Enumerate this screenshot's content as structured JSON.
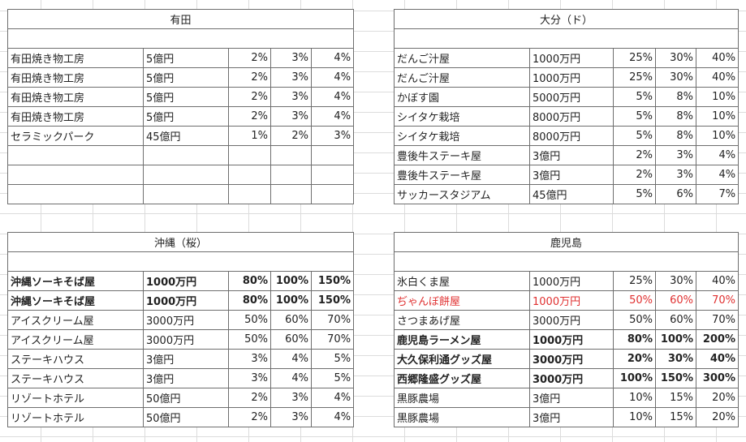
{
  "sheets": [
    {
      "title": "有田",
      "rows": [
        {
          "name": "有田焼き物工房",
          "cost": "5億円",
          "p1": "2%",
          "p2": "3%",
          "p3": "4%",
          "style": ""
        },
        {
          "name": "有田焼き物工房",
          "cost": "5億円",
          "p1": "2%",
          "p2": "3%",
          "p3": "4%",
          "style": ""
        },
        {
          "name": "有田焼き物工房",
          "cost": "5億円",
          "p1": "2%",
          "p2": "3%",
          "p3": "4%",
          "style": ""
        },
        {
          "name": "有田焼き物工房",
          "cost": "5億円",
          "p1": "2%",
          "p2": "3%",
          "p3": "4%",
          "style": ""
        },
        {
          "name": "セラミックパーク",
          "cost": "45億円",
          "p1": "1%",
          "p2": "2%",
          "p3": "3%",
          "style": ""
        },
        {
          "name": "",
          "cost": "",
          "p1": "",
          "p2": "",
          "p3": "",
          "style": ""
        },
        {
          "name": "",
          "cost": "",
          "p1": "",
          "p2": "",
          "p3": "",
          "style": ""
        },
        {
          "name": "",
          "cost": "",
          "p1": "",
          "p2": "",
          "p3": "",
          "style": ""
        }
      ]
    },
    {
      "title": "大分（ド）",
      "rows": [
        {
          "name": "だんご汁屋",
          "cost": "1000万円",
          "p1": "25%",
          "p2": "30%",
          "p3": "40%",
          "style": ""
        },
        {
          "name": "だんご汁屋",
          "cost": "1000万円",
          "p1": "25%",
          "p2": "30%",
          "p3": "40%",
          "style": ""
        },
        {
          "name": "かぼす園",
          "cost": "5000万円",
          "p1": "5%",
          "p2": "8%",
          "p3": "10%",
          "style": ""
        },
        {
          "name": "シイタケ栽培",
          "cost": "8000万円",
          "p1": "5%",
          "p2": "8%",
          "p3": "10%",
          "style": ""
        },
        {
          "name": "シイタケ栽培",
          "cost": "8000万円",
          "p1": "5%",
          "p2": "8%",
          "p3": "10%",
          "style": ""
        },
        {
          "name": "豊後牛ステーキ屋",
          "cost": "3億円",
          "p1": "2%",
          "p2": "3%",
          "p3": "4%",
          "style": ""
        },
        {
          "name": "豊後牛ステーキ屋",
          "cost": "3億円",
          "p1": "2%",
          "p2": "3%",
          "p3": "4%",
          "style": ""
        },
        {
          "name": "サッカースタジアム",
          "cost": "45億円",
          "p1": "5%",
          "p2": "6%",
          "p3": "7%",
          "style": ""
        }
      ]
    },
    {
      "title": "沖縄（桜）",
      "rows": [
        {
          "name": "沖縄ソーキそば屋",
          "cost": "1000万円",
          "p1": "80%",
          "p2": "100%",
          "p3": "150%",
          "style": "bold"
        },
        {
          "name": "沖縄ソーキそば屋",
          "cost": "1000万円",
          "p1": "80%",
          "p2": "100%",
          "p3": "150%",
          "style": "bold"
        },
        {
          "name": "アイスクリーム屋",
          "cost": "3000万円",
          "p1": "50%",
          "p2": "60%",
          "p3": "70%",
          "style": ""
        },
        {
          "name": "アイスクリーム屋",
          "cost": "3000万円",
          "p1": "50%",
          "p2": "60%",
          "p3": "70%",
          "style": ""
        },
        {
          "name": "ステーキハウス",
          "cost": "3億円",
          "p1": "3%",
          "p2": "4%",
          "p3": "5%",
          "style": ""
        },
        {
          "name": "ステーキハウス",
          "cost": "3億円",
          "p1": "3%",
          "p2": "4%",
          "p3": "5%",
          "style": ""
        },
        {
          "name": "リゾートホテル",
          "cost": "50億円",
          "p1": "2%",
          "p2": "3%",
          "p3": "4%",
          "style": ""
        },
        {
          "name": "リゾートホテル",
          "cost": "50億円",
          "p1": "2%",
          "p2": "3%",
          "p3": "4%",
          "style": ""
        }
      ]
    },
    {
      "title": "鹿児島",
      "rows": [
        {
          "name": "氷白くま屋",
          "cost": "1000万円",
          "p1": "25%",
          "p2": "30%",
          "p3": "40%",
          "style": ""
        },
        {
          "name": "ぢゃんぼ餅屋",
          "cost": "1000万円",
          "p1": "50%",
          "p2": "60%",
          "p3": "70%",
          "style": "red"
        },
        {
          "name": "さつまあげ屋",
          "cost": "3000万円",
          "p1": "50%",
          "p2": "60%",
          "p3": "70%",
          "style": ""
        },
        {
          "name": "鹿児島ラーメン屋",
          "cost": "1000万円",
          "p1": "80%",
          "p2": "100%",
          "p3": "200%",
          "style": "bold"
        },
        {
          "name": "大久保利通グッズ屋",
          "cost": "3000万円",
          "p1": "20%",
          "p2": "30%",
          "p3": "40%",
          "style": "bold"
        },
        {
          "name": "西郷隆盛グッズ屋",
          "cost": "3000万円",
          "p1": "100%",
          "p2": "150%",
          "p3": "300%",
          "style": "bold"
        },
        {
          "name": "黒豚農場",
          "cost": "3億円",
          "p1": "10%",
          "p2": "15%",
          "p3": "20%",
          "style": ""
        },
        {
          "name": "黒豚農場",
          "cost": "3億円",
          "p1": "10%",
          "p2": "15%",
          "p3": "20%",
          "style": ""
        }
      ]
    }
  ],
  "colors": {
    "red_text": "#e03030",
    "border": "#6e6e6e",
    "gridline": "#dcdcdc"
  }
}
